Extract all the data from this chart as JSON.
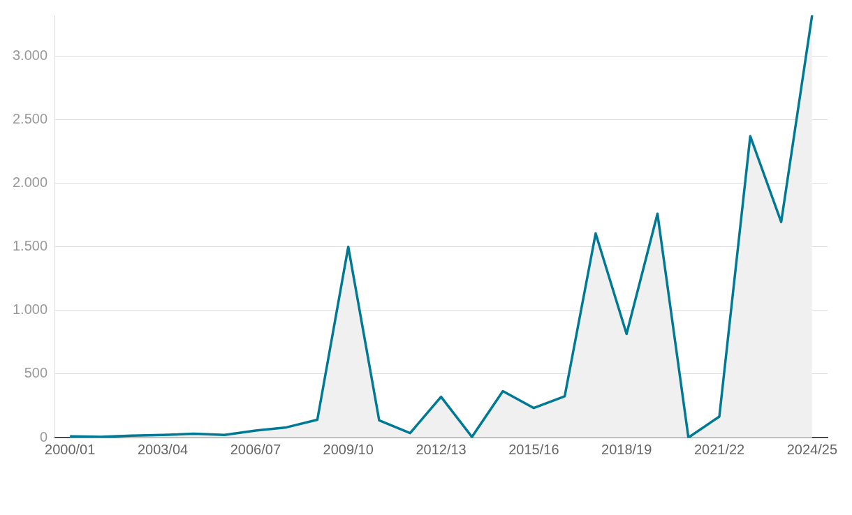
{
  "chart_data": {
    "type": "area",
    "categories": [
      "2000/01",
      null,
      null,
      "2003/04",
      null,
      null,
      "2006/07",
      null,
      null,
      "2009/10",
      null,
      null,
      "2012/13",
      null,
      null,
      "2015/16",
      null,
      null,
      "2018/19",
      null,
      null,
      "2021/22",
      null,
      null,
      "2024/25"
    ],
    "series": [
      {
        "color": "#007a94",
        "values": [
          10,
          5,
          15,
          20,
          30,
          20,
          55,
          80,
          140,
          1500,
          135,
          35,
          320,
          5,
          365,
          232,
          325,
          1605,
          815,
          1760,
          0,
          165,
          2370,
          1695,
          3320
        ]
      }
    ],
    "yticks": [
      0,
      500,
      {
        "value": 1000,
        "label": "1.000"
      },
      {
        "value": 1500,
        "label": "1.500"
      },
      {
        "value": 2000,
        "label": "2.000"
      },
      {
        "value": 2500,
        "label": "2.500"
      },
      {
        "value": 3000,
        "label": "3.000"
      }
    ],
    "ylim": [
      0,
      3320
    ],
    "grid": "y",
    "legend": false,
    "marker": "none",
    "line_style": "solid"
  }
}
